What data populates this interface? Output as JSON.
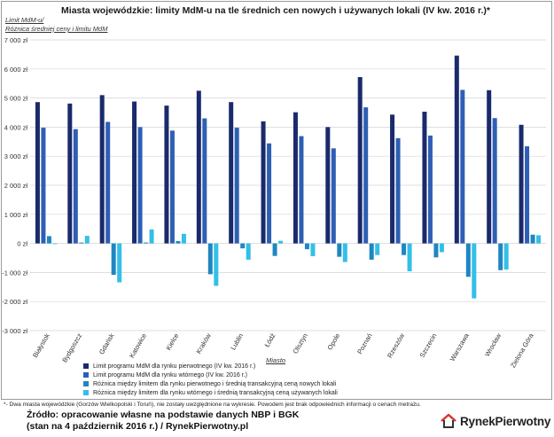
{
  "title": "Miasta wojewódzkie: limity MdM-u na tle średnich cen nowych i używanych lokali (IV kw. 2016 r.)*",
  "y_axis_label_line1": "Limit MdM-u/",
  "y_axis_label_line2": "Różnica średniej ceny i limitu MdM",
  "x_axis_label": "Miasto",
  "footnote": "*- Dwa miasta wojewódzkie (Gorzów Wielkopolski i Toruń), nie zostały uwzględnione na wykresie. Powodem jest brak odpowiednich informacji o cenach metrażu.",
  "source_line1": "Źródło: opracowanie własne na podstawie danych NBP i BGK",
  "source_line2": "(stan na 4 październik 2016 r.) / RynekPierwotny.pl",
  "brand_name": "RynekPierwotny",
  "colors": {
    "series1": "#1a2a6c",
    "series2": "#2e5fb5",
    "series3": "#1f86c2",
    "series4": "#33bfe8",
    "grid": "#d4d4d4",
    "brand_red": "#d9332b"
  },
  "chart_data": {
    "type": "bar",
    "title": "Miasta wojewódzkie: limity MdM-u na tle średnich cen nowych i używanych lokali (IV kw. 2016 r.)*",
    "xlabel": "Miasto",
    "ylabel": "Limit MdM-u/ Różnica średniej ceny i limitu MdM",
    "ylim": [
      -3000,
      7000
    ],
    "ytick_step": 1000,
    "ytick_labels": [
      "-3 000 zł",
      "-2 000 zł",
      "-1 000 zł",
      "0 zł",
      "1 000 zł",
      "2 000 zł",
      "3 000 zł",
      "4 000 zł",
      "5 000 zł",
      "6 000 zł",
      "7 000 zł"
    ],
    "grid": true,
    "legend_position": "bottom-left",
    "categories": [
      "Białystok",
      "Bydgoszcz",
      "Gdańsk",
      "Katowice",
      "Kielce",
      "Kraków",
      "Lublin",
      "Łódź",
      "Olsztyn",
      "Opole",
      "Poznań",
      "Rzeszów",
      "Szczecin",
      "Warszawa",
      "Wrocław",
      "Zielona Góra"
    ],
    "series": [
      {
        "name": "Limit programu MdM dla rynku pierwotnego (IV kw. 2016 r.)",
        "values": [
          4860,
          4810,
          5100,
          4880,
          4740,
          5250,
          4860,
          4200,
          4510,
          4000,
          5720,
          4430,
          4530,
          6460,
          5270,
          4080
        ]
      },
      {
        "name": "Limit programu MdM dla rynku wtórnego (IV kw. 2016 r.)",
        "values": [
          3980,
          3930,
          4180,
          4000,
          3880,
          4300,
          3980,
          3440,
          3690,
          3270,
          4680,
          3620,
          3710,
          5280,
          4310,
          3340
        ]
      },
      {
        "name": "Różnica między limitem dla rynku pierwotnego i średnią transakcyjną ceną nowych lokali",
        "values": [
          250,
          30,
          -1080,
          30,
          80,
          -1060,
          -170,
          -430,
          -200,
          -460,
          -560,
          -400,
          -480,
          -1150,
          -920,
          300
        ]
      },
      {
        "name": "Różnica między limitem dla rynku wtórnego i średnią transakcyjną ceną używanych lokali",
        "values": [
          -20,
          260,
          -1340,
          480,
          330,
          -1460,
          -560,
          90,
          -440,
          -640,
          -400,
          -960,
          -300,
          -1890,
          -900,
          280
        ]
      }
    ]
  }
}
